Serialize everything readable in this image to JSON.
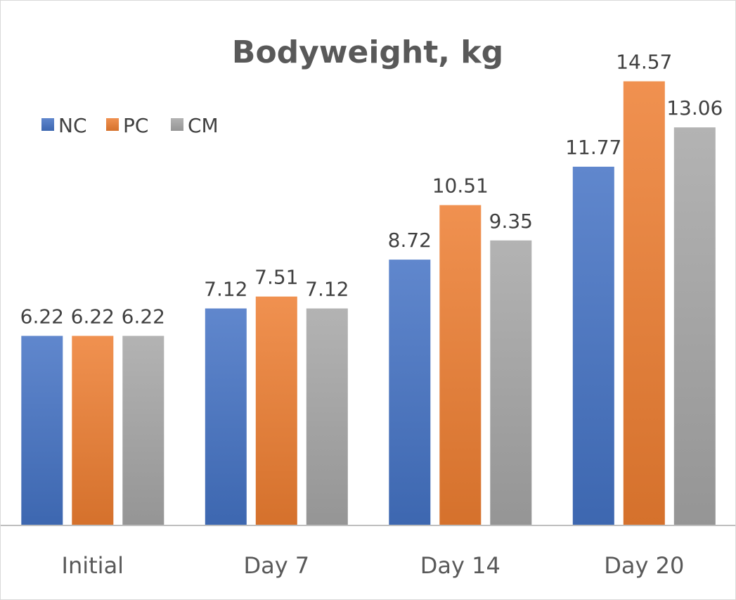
{
  "chart_data": {
    "type": "bar",
    "title": "Bodyweight, kg",
    "xlabel": "",
    "ylabel": "",
    "categories": [
      "Initial",
      "Day 7",
      "Day 14",
      "Day 20"
    ],
    "series": [
      {
        "name": "NC",
        "values": [
          6.22,
          7.12,
          8.72,
          11.77
        ],
        "labels": [
          "6.22",
          "7.12",
          "8.72",
          "11.77"
        ],
        "color": "#4472c4"
      },
      {
        "name": "PC",
        "values": [
          6.22,
          7.51,
          10.51,
          14.57
        ],
        "labels": [
          "6.22",
          "7.51",
          "10.51",
          "14.57"
        ],
        "color": "#ed7d31"
      },
      {
        "name": "CM",
        "values": [
          6.22,
          7.12,
          9.35,
          13.06
        ],
        "labels": [
          "6.22",
          "7.12",
          "9.35",
          "13.06"
        ],
        "color": "#a5a5a5"
      }
    ],
    "ylim": [
      0,
      15
    ],
    "grid": false,
    "legend_position": "top-left"
  }
}
